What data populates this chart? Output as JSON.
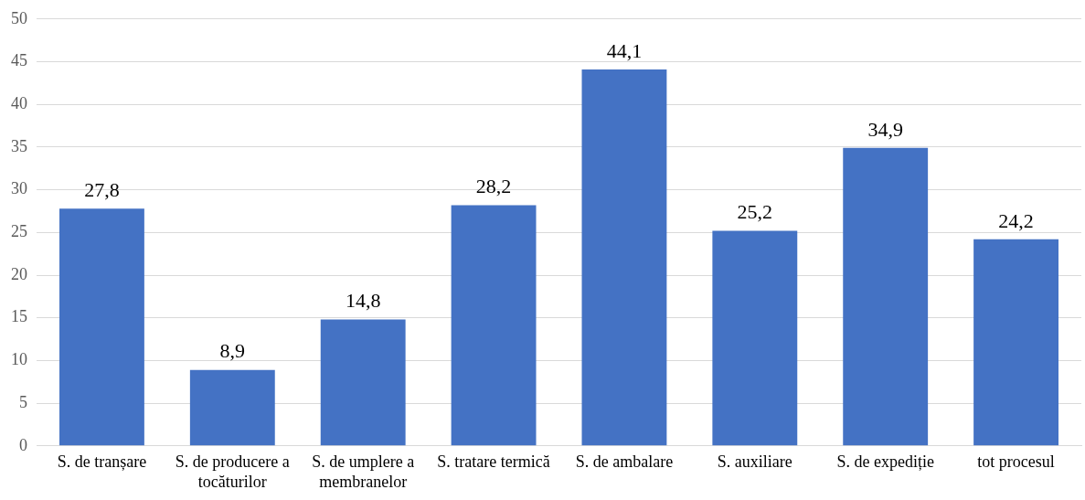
{
  "chart_data": {
    "type": "bar",
    "categories": [
      "S. de tranșare",
      "S. de producere a tocăturilor",
      "S. de umplere a membranelor",
      "S. tratare termică",
      "S. de ambalare",
      "S. auxiliare",
      "S. de expediție",
      "tot procesul"
    ],
    "values": [
      27.8,
      8.9,
      14.8,
      28.2,
      44.1,
      25.2,
      34.9,
      24.2
    ],
    "color": "#4472c4",
    "ylim": [
      0,
      50
    ],
    "yticks": [
      0,
      5,
      10,
      15,
      20,
      25,
      30,
      35,
      40,
      45,
      50
    ],
    "value_labels": [
      "27,8",
      "8,9",
      "14,8",
      "28,2",
      "44,1",
      "25,2",
      "34,9",
      "24,2"
    ],
    "grid": "y",
    "legend": false
  }
}
